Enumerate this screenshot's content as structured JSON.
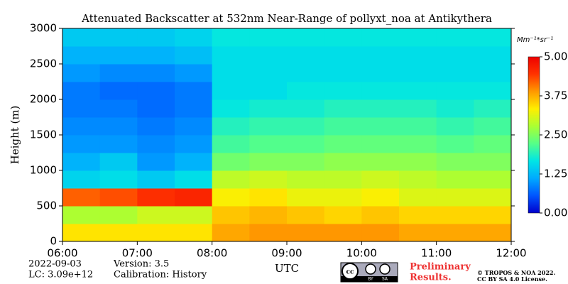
{
  "chart_data": {
    "type": "heatmap",
    "title": "Attenuated Backscatter at 532nm Near-Range of pollyxt_noa at Antikythera",
    "xlabel": "UTC",
    "ylabel": "Height (m)",
    "colorbar_label": "Mm⁻¹*sr⁻¹",
    "x_edges": [
      6,
      6.5,
      7,
      7.5,
      8,
      8.5,
      9,
      9.5,
      10,
      10.5,
      11,
      11.5,
      12
    ],
    "y_edges": [
      0,
      250,
      500,
      750,
      1000,
      1250,
      1500,
      1750,
      2000,
      2250,
      2500,
      2750,
      3000
    ],
    "z": [
      [
        3.4,
        3.4,
        3.4,
        3.4,
        3.8,
        3.9,
        3.9,
        3.9,
        3.9,
        3.8,
        3.8,
        3.8
      ],
      [
        2.8,
        2.8,
        3.0,
        3.0,
        3.6,
        3.7,
        3.6,
        3.5,
        3.6,
        3.5,
        3.5,
        3.5
      ],
      [
        4.2,
        4.3,
        4.5,
        4.6,
        3.3,
        3.4,
        3.2,
        3.2,
        3.3,
        3.1,
        3.1,
        3.1
      ],
      [
        1.5,
        1.6,
        1.4,
        1.6,
        2.9,
        3.0,
        2.9,
        2.9,
        3.0,
        2.9,
        2.8,
        2.8
      ],
      [
        1.2,
        1.4,
        1.0,
        1.2,
        2.4,
        2.5,
        2.5,
        2.6,
        2.6,
        2.6,
        2.5,
        2.5
      ],
      [
        1.0,
        1.0,
        0.9,
        1.0,
        2.1,
        2.2,
        2.2,
        2.3,
        2.3,
        2.3,
        2.2,
        2.3
      ],
      [
        0.9,
        0.9,
        0.8,
        0.9,
        1.9,
        2.0,
        2.0,
        2.1,
        2.1,
        2.1,
        2.0,
        2.1
      ],
      [
        0.8,
        0.8,
        0.7,
        0.8,
        1.7,
        1.8,
        1.8,
        1.9,
        1.9,
        1.9,
        1.8,
        1.9
      ],
      [
        0.8,
        0.7,
        0.7,
        0.8,
        1.6,
        1.6,
        1.7,
        1.7,
        1.7,
        1.7,
        1.7,
        1.7
      ],
      [
        1.0,
        0.9,
        0.9,
        1.0,
        1.6,
        1.6,
        1.6,
        1.6,
        1.6,
        1.6,
        1.6,
        1.6
      ],
      [
        1.2,
        1.2,
        1.2,
        1.3,
        1.6,
        1.6,
        1.6,
        1.6,
        1.6,
        1.6,
        1.6,
        1.6
      ],
      [
        1.4,
        1.4,
        1.4,
        1.5,
        1.7,
        1.7,
        1.7,
        1.7,
        1.7,
        1.7,
        1.7,
        1.7
      ]
    ],
    "colorscale": [
      "#0000cc",
      "#0055ff",
      "#00aaff",
      "#00e5e5",
      "#55ff88",
      "#aaff33",
      "#ffee00",
      "#ff9900",
      "#ff3300",
      "#ee0000"
    ],
    "xlim": [
      6,
      12
    ],
    "xticks": [
      {
        "value": 6,
        "label": "06:00"
      },
      {
        "value": 7,
        "label": "07:00"
      },
      {
        "value": 8,
        "label": "08:00"
      },
      {
        "value": 9,
        "label": "09:00"
      },
      {
        "value": 10,
        "label": "10:00"
      },
      {
        "value": 11,
        "label": "11:00"
      },
      {
        "value": 12,
        "label": "12:00"
      }
    ],
    "ylim": [
      0,
      3000
    ],
    "yticks": [
      0,
      500,
      1000,
      1500,
      2000,
      2500,
      3000
    ],
    "clim": [
      0,
      5
    ],
    "cticks": [
      {
        "value": 0,
        "label": "0.00"
      },
      {
        "value": 1.25,
        "label": "1.25"
      },
      {
        "value": 2.5,
        "label": "2.50"
      },
      {
        "value": 3.75,
        "label": "3.75"
      },
      {
        "value": 5,
        "label": "5.00"
      }
    ]
  },
  "footer": {
    "date": "2022-09-03",
    "lc": "LC: 3.09e+12",
    "version": "Version: 3.5",
    "calibration": "Calibration: History",
    "badge": [
      "BY",
      "SA"
    ],
    "preliminary": [
      "Preliminary",
      "Results."
    ],
    "copyright": [
      "© TROPOS & NOA 2022.",
      "CC BY SA 4.0 License."
    ]
  }
}
